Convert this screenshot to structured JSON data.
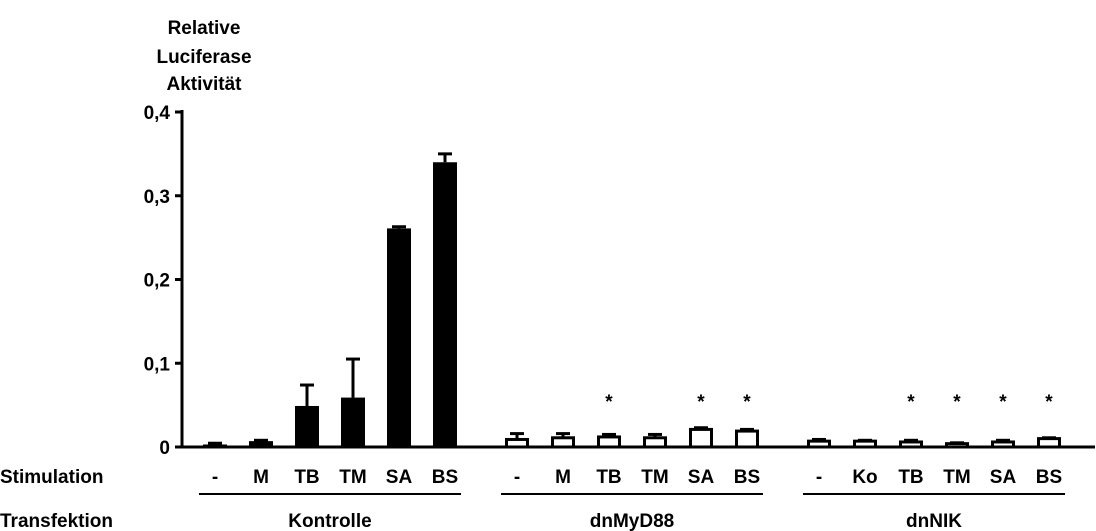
{
  "chart_data": {
    "type": "bar",
    "ylabel": [
      "Relative",
      "Luciferase",
      "Aktivität"
    ],
    "ylim": [
      0,
      0.4
    ],
    "yticks": [
      {
        "value": 0,
        "label": "0"
      },
      {
        "value": 0.1,
        "label": "0,1"
      },
      {
        "value": 0.2,
        "label": "0,2"
      },
      {
        "value": 0.3,
        "label": "0,3"
      },
      {
        "value": 0.4,
        "label": "0,4"
      }
    ],
    "row_labels": {
      "stimulation": "Stimulation",
      "transfektion": "Transfektion"
    },
    "groups": [
      {
        "transfektion": "Kontrolle",
        "fill": "#000000",
        "bars": [
          {
            "stimulation": "-",
            "value": 0.003,
            "error": 0.0015,
            "significant": false
          },
          {
            "stimulation": "M",
            "value": 0.007,
            "error": 0.001,
            "significant": false
          },
          {
            "stimulation": "TB",
            "value": 0.049,
            "error": 0.025,
            "significant": false
          },
          {
            "stimulation": "TM",
            "value": 0.059,
            "error": 0.046,
            "significant": false
          },
          {
            "stimulation": "SA",
            "value": 0.261,
            "error": 0.002,
            "significant": false
          },
          {
            "stimulation": "BS",
            "value": 0.34,
            "error": 0.01,
            "significant": false
          }
        ]
      },
      {
        "transfektion": "dnMyD88",
        "fill": "#ffffff",
        "bars": [
          {
            "stimulation": "-",
            "value": 0.009,
            "error": 0.007,
            "significant": false
          },
          {
            "stimulation": "M",
            "value": 0.011,
            "error": 0.005,
            "significant": false
          },
          {
            "stimulation": "TB",
            "value": 0.012,
            "error": 0.003,
            "significant": true
          },
          {
            "stimulation": "TM",
            "value": 0.011,
            "error": 0.004,
            "significant": false
          },
          {
            "stimulation": "SA",
            "value": 0.021,
            "error": 0.002,
            "significant": true
          },
          {
            "stimulation": "BS",
            "value": 0.019,
            "error": 0.002,
            "significant": true
          }
        ]
      },
      {
        "transfektion": "dnNIK",
        "fill": "#ffffff",
        "bars": [
          {
            "stimulation": "-",
            "value": 0.007,
            "error": 0.002,
            "significant": false
          },
          {
            "stimulation": "Ko",
            "value": 0.007,
            "error": 0.001,
            "significant": false
          },
          {
            "stimulation": "TB",
            "value": 0.006,
            "error": 0.002,
            "significant": true
          },
          {
            "stimulation": "TM",
            "value": 0.004,
            "error": 0.001,
            "significant": true
          },
          {
            "stimulation": "SA",
            "value": 0.006,
            "error": 0.002,
            "significant": true
          },
          {
            "stimulation": "BS",
            "value": 0.01,
            "error": 0.001,
            "significant": true
          }
        ]
      }
    ],
    "significance_marker": "*",
    "grid": false,
    "legend": "none"
  }
}
